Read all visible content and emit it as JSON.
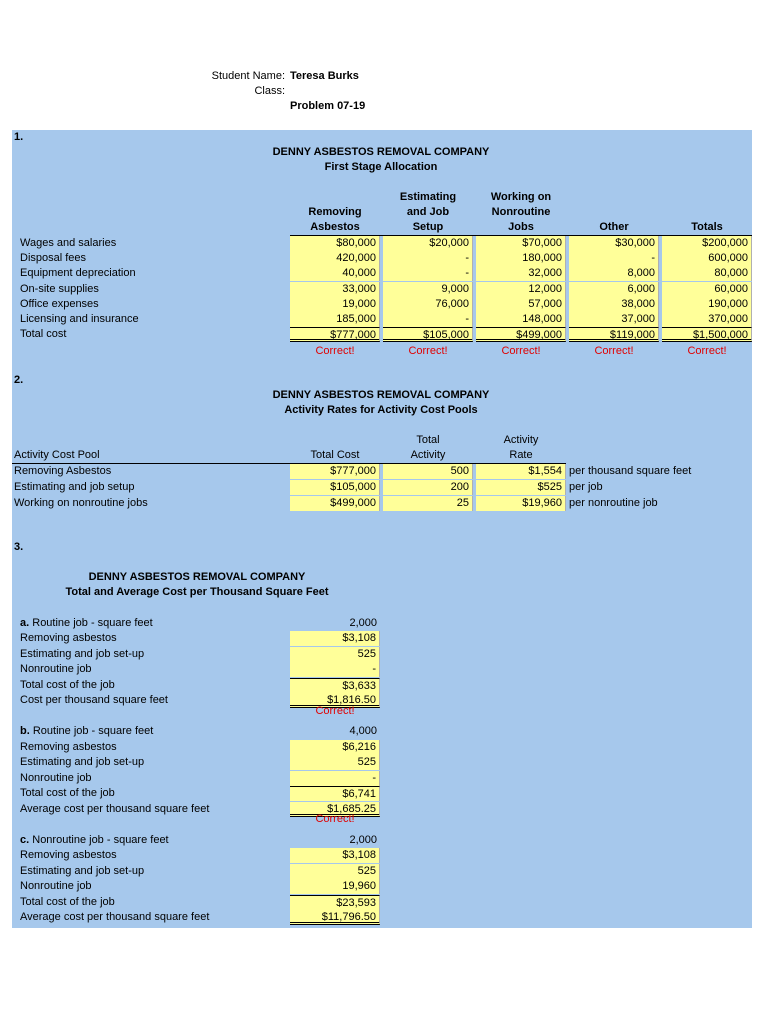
{
  "header": {
    "student_label": "Student Name:",
    "student_name": "Teresa Burks",
    "class_label": "Class:",
    "problem": "Problem 07-19"
  },
  "section1": {
    "number": "1.",
    "title": "DENNY ASBESTOS REMOVAL COMPANY",
    "subtitle": "First Stage Allocation",
    "columns": [
      [
        "Removing",
        "Asbestos"
      ],
      [
        "Estimating",
        "and Job",
        "Setup"
      ],
      [
        "Working on",
        "Nonroutine",
        "Jobs"
      ],
      [
        "Other"
      ],
      [
        "Totals"
      ]
    ],
    "rows": [
      {
        "label": "Wages and salaries",
        "values": [
          "$80,000",
          "$20,000",
          "$70,000",
          "$30,000",
          "$200,000"
        ]
      },
      {
        "label": "Disposal fees",
        "values": [
          "420,000",
          "-",
          "180,000",
          "-",
          "600,000"
        ]
      },
      {
        "label": "Equipment depreciation",
        "values": [
          "40,000",
          "-",
          "32,000",
          "8,000",
          "80,000"
        ]
      },
      {
        "label": "On-site supplies",
        "values": [
          "33,000",
          "9,000",
          "12,000",
          "6,000",
          "60,000"
        ]
      },
      {
        "label": "Office expenses",
        "values": [
          "19,000",
          "76,000",
          "57,000",
          "38,000",
          "190,000"
        ]
      },
      {
        "label": "Licensing and insurance",
        "values": [
          "185,000",
          "-",
          "148,000",
          "37,000",
          "370,000"
        ]
      }
    ],
    "total": {
      "label": "Total cost",
      "values": [
        "$777,000",
        "$105,000",
        "$499,000",
        "$119,000",
        "$1,500,000"
      ]
    },
    "status": [
      "Correct!",
      "Correct!",
      "Correct!",
      "Correct!",
      "Correct!"
    ]
  },
  "section2": {
    "number": "2.",
    "title": "DENNY ASBESTOS REMOVAL COMPANY",
    "subtitle": "Activity Rates for Activity Cost Pools",
    "columns": {
      "pool": "Activity Cost Pool",
      "total_cost": "Total Cost",
      "total_activity": [
        "Total",
        "Activity"
      ],
      "rate": [
        "Activity",
        "Rate"
      ]
    },
    "rows": [
      {
        "label": "Removing Asbestos",
        "total_cost": "$777,000",
        "total_activity": "500",
        "rate": "$1,554",
        "unit": "per thousand square feet"
      },
      {
        "label": "Estimating and job setup",
        "total_cost": "$105,000",
        "total_activity": "200",
        "rate": "$525",
        "unit": "per job"
      },
      {
        "label": "Working on nonroutine jobs",
        "total_cost": "$499,000",
        "total_activity": "25",
        "rate": "$19,960",
        "unit": "per nonroutine job"
      }
    ]
  },
  "section3": {
    "number": "3.",
    "title": "DENNY ASBESTOS REMOVAL COMPANY",
    "subtitle": "Total and Average Cost per Thousand Square Feet",
    "parts": [
      {
        "letter": "a.",
        "label": "Routine job - square feet",
        "value": "2,000",
        "rows": [
          {
            "label": "Removing asbestos",
            "value": "$3,108"
          },
          {
            "label": "Estimating and job set-up",
            "value": "525"
          },
          {
            "label": "Nonroutine job",
            "value": "-"
          },
          {
            "label": "Total cost of the job",
            "value": "$3,633"
          },
          {
            "label": "Cost per thousand square feet",
            "value": "$1,816.50"
          }
        ],
        "status": "Correct!"
      },
      {
        "letter": "b.",
        "label": "Routine job - square feet",
        "value": "4,000",
        "rows": [
          {
            "label": "Removing asbestos",
            "value": "$6,216"
          },
          {
            "label": "Estimating and job set-up",
            "value": "525"
          },
          {
            "label": "Nonroutine job",
            "value": "-"
          },
          {
            "label": "Total cost of the job",
            "value": "$6,741"
          },
          {
            "label": "Average cost per thousand square feet",
            "value": "$1,685.25"
          }
        ],
        "status": "Correct!"
      },
      {
        "letter": "c.",
        "label": "Nonroutine job - square feet",
        "value": "2,000",
        "rows": [
          {
            "label": "Removing asbestos",
            "value": "$3,108"
          },
          {
            "label": "Estimating and job set-up",
            "value": "525"
          },
          {
            "label": "Nonroutine job",
            "value": "19,960"
          },
          {
            "label": "Total cost of the job",
            "value": "$23,593"
          },
          {
            "label": "Average cost per thousand square feet",
            "value": "$11,796.50"
          }
        ]
      }
    ]
  }
}
